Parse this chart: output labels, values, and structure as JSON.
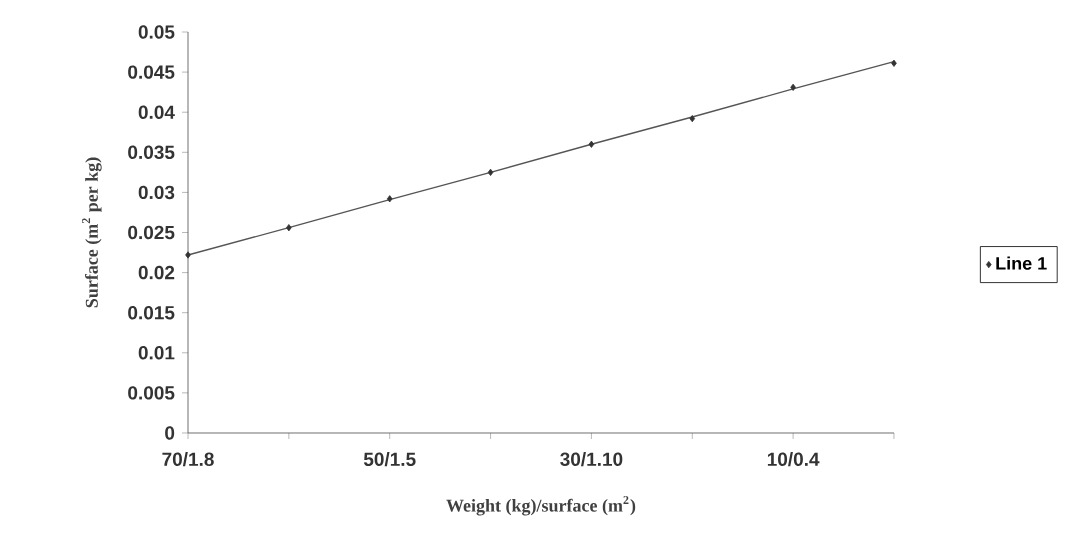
{
  "chart_data": {
    "type": "scatter",
    "xlabel": "Weight (kg)/surface (m$^{2}$)",
    "ylabel": "Surface (m$^{2}$ per kg)",
    "categories": [
      "70/1.8",
      null,
      "50/1.5",
      null,
      "30/1.10",
      null,
      "10/0.4",
      null
    ],
    "series": [
      {
        "name": "Line 1",
        "type": "scatter",
        "color": "#333333",
        "marker": "diamond",
        "values": [
          0.0222,
          0.0256,
          0.0292,
          0.0325,
          0.036,
          0.0392,
          0.0431,
          0.0461
        ]
      },
      {
        "type": "line",
        "color": "#555555",
        "marker": "none",
        "values": [
          0.0222,
          0.0256,
          0.0291,
          0.0325,
          0.036,
          0.0394,
          0.0429,
          0.0463
        ]
      }
    ],
    "ylim": [
      0,
      0.05
    ],
    "yticks": [
      0,
      0.005,
      0.01,
      0.015,
      0.02,
      0.025,
      0.03,
      0.035,
      0.04,
      0.045,
      0.05
    ],
    "grid": false,
    "legend": "right"
  }
}
